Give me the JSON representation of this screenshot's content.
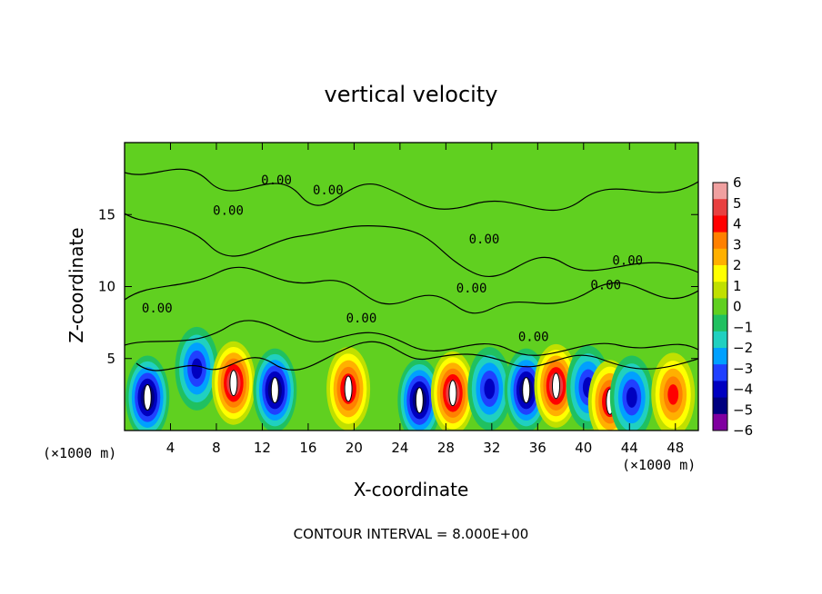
{
  "chart_data": {
    "type": "heatmap",
    "title": "vertical velocity",
    "xlabel": "X-coordinate",
    "ylabel": "Z-coordinate",
    "x_units": "(×1000 m)",
    "y_units": "(×1000 m)",
    "xlim": [
      0,
      50
    ],
    "ylim": [
      0,
      20
    ],
    "x_ticks": [
      4,
      8,
      12,
      16,
      20,
      24,
      28,
      32,
      36,
      40,
      44,
      48
    ],
    "y_ticks": [
      5,
      10,
      15
    ],
    "footnote": "CONTOUR INTERVAL = 8.000E+00",
    "contour_label": "0.00",
    "colorbar": {
      "ticks": [
        "6",
        "5",
        "4",
        "3",
        "2",
        "1",
        "0",
        "−1",
        "−2",
        "−3",
        "−4",
        "−5",
        "−6"
      ],
      "colors": [
        "#f0a0a0",
        "#e84040",
        "#ff0000",
        "#ff8000",
        "#ffb000",
        "#ffff00",
        "#c0e000",
        "#60d020",
        "#20c060",
        "#20d0c0",
        "#00a0ff",
        "#2040ff",
        "#0000c0",
        "#000080",
        "#8000a0"
      ]
    },
    "cells": [
      {
        "x": 2,
        "z": 2.3,
        "w": -6
      },
      {
        "x": 6.3,
        "z": 4.3,
        "w": -4
      },
      {
        "x": 9.5,
        "z": 3.3,
        "w": 6
      },
      {
        "x": 13.1,
        "z": 2.8,
        "w": -6
      },
      {
        "x": 19.5,
        "z": 2.9,
        "w": 5
      },
      {
        "x": 25.7,
        "z": 2.1,
        "w": -6
      },
      {
        "x": 28.6,
        "z": 2.6,
        "w": 6
      },
      {
        "x": 31.8,
        "z": 2.9,
        "w": -4
      },
      {
        "x": 35,
        "z": 2.8,
        "w": -6
      },
      {
        "x": 37.6,
        "z": 3.1,
        "w": 6
      },
      {
        "x": 40.4,
        "z": 3,
        "w": -4
      },
      {
        "x": 42.3,
        "z": 2,
        "w": 5
      },
      {
        "x": 44.2,
        "z": 2.3,
        "w": -4
      },
      {
        "x": 47.8,
        "z": 2.5,
        "w": 4
      }
    ],
    "contour_label_positions": [
      {
        "x": 1.5,
        "z": 8.2
      },
      {
        "x": 11.9,
        "z": 17.1
      },
      {
        "x": 16.4,
        "z": 16.4
      },
      {
        "x": 7.7,
        "z": 15
      },
      {
        "x": 19.3,
        "z": 7.5
      },
      {
        "x": 30,
        "z": 13
      },
      {
        "x": 28.9,
        "z": 9.6
      },
      {
        "x": 34.3,
        "z": 6.2
      },
      {
        "x": 40.6,
        "z": 9.8
      },
      {
        "x": 42.5,
        "z": 11.5
      }
    ]
  }
}
